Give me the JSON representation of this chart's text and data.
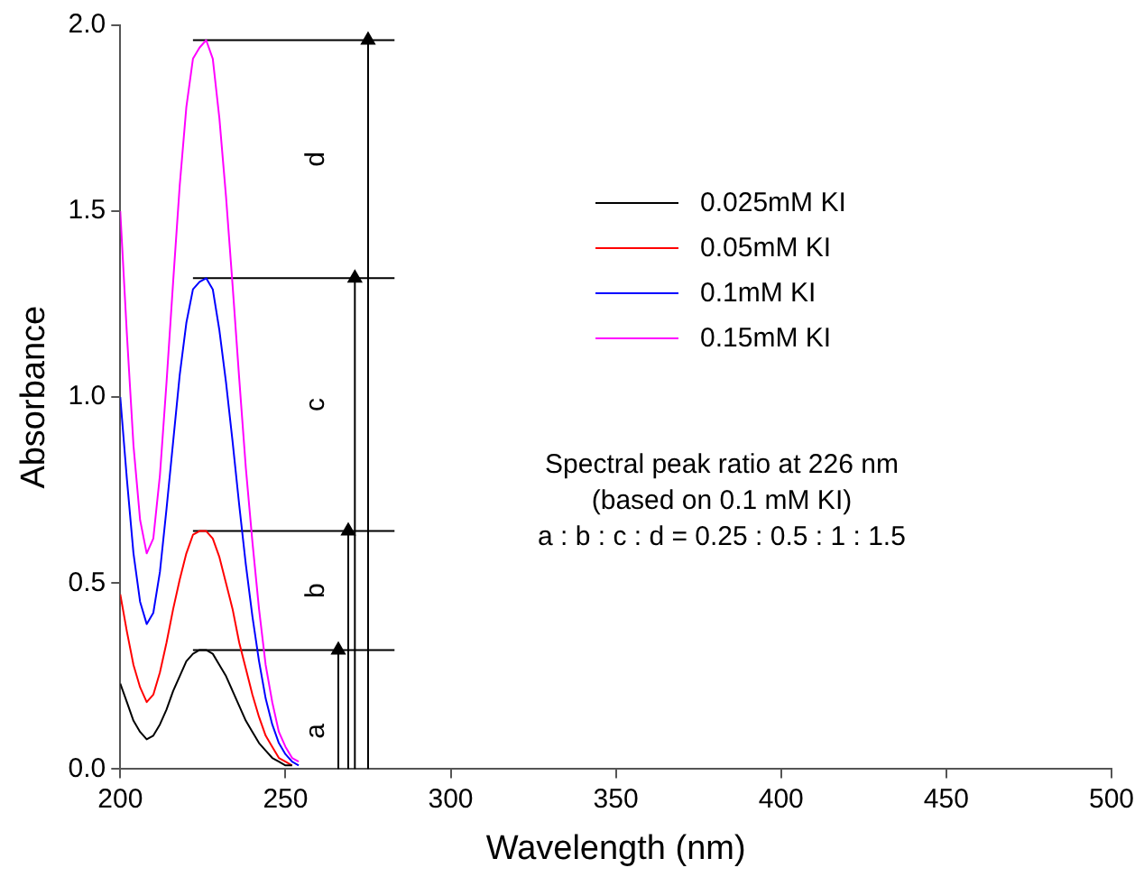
{
  "chart_data": {
    "type": "line",
    "xlabel": "Wavelength (nm)",
    "ylabel": "Absorbance",
    "x": [
      200,
      202,
      204,
      206,
      208,
      210,
      212,
      214,
      216,
      218,
      220,
      222,
      224,
      226,
      228,
      230,
      232,
      234,
      236,
      238,
      240,
      242,
      244,
      246,
      248,
      250,
      252,
      254
    ],
    "series": [
      {
        "name": "0.025mM KI",
        "color": "#000000",
        "values": [
          0.23,
          0.18,
          0.13,
          0.1,
          0.08,
          0.09,
          0.12,
          0.16,
          0.21,
          0.25,
          0.29,
          0.31,
          0.32,
          0.32,
          0.31,
          0.28,
          0.25,
          0.21,
          0.17,
          0.13,
          0.1,
          0.07,
          0.05,
          0.03,
          0.02,
          0.01,
          0.01,
          null
        ]
      },
      {
        "name": "0.05mM KI",
        "color": "#ff0000",
        "values": [
          0.47,
          0.37,
          0.28,
          0.22,
          0.18,
          0.2,
          0.26,
          0.34,
          0.43,
          0.51,
          0.58,
          0.63,
          0.64,
          0.64,
          0.62,
          0.57,
          0.5,
          0.43,
          0.34,
          0.27,
          0.2,
          0.14,
          0.09,
          0.06,
          0.03,
          0.02,
          0.01,
          null
        ]
      },
      {
        "name": "0.1mM KI",
        "color": "#0000ff",
        "values": [
          1.0,
          0.78,
          0.58,
          0.45,
          0.39,
          0.42,
          0.53,
          0.7,
          0.88,
          1.06,
          1.2,
          1.29,
          1.31,
          1.32,
          1.29,
          1.18,
          1.04,
          0.88,
          0.71,
          0.55,
          0.41,
          0.29,
          0.19,
          0.12,
          0.07,
          0.04,
          0.02,
          0.01
        ]
      },
      {
        "name": "0.15mM KI",
        "color": "#ff00ff",
        "values": [
          1.5,
          1.17,
          0.87,
          0.67,
          0.58,
          0.62,
          0.79,
          1.04,
          1.31,
          1.57,
          1.78,
          1.91,
          1.94,
          1.96,
          1.91,
          1.75,
          1.54,
          1.3,
          1.05,
          0.81,
          0.61,
          0.43,
          0.28,
          0.18,
          0.1,
          0.06,
          0.03,
          0.02
        ]
      },
      {
        "type": "line",
        "color": "#000000",
        "x": [
          222,
          283
        ],
        "values": [
          0.32,
          0.32
        ]
      },
      {
        "type": "line",
        "color": "#000000",
        "x": [
          222,
          283
        ],
        "values": [
          0.64,
          0.64
        ]
      },
      {
        "type": "line",
        "color": "#000000",
        "x": [
          222,
          283
        ],
        "values": [
          1.32,
          1.32
        ]
      },
      {
        "type": "line",
        "color": "#000000",
        "x": [
          222,
          283
        ],
        "values": [
          1.96,
          1.96
        ]
      },
      {
        "type": "line",
        "color": "#000000",
        "marker": "triangle",
        "x": [
          266,
          266
        ],
        "values": [
          0,
          0.32
        ]
      },
      {
        "type": "line",
        "color": "#000000",
        "marker": "triangle",
        "x": [
          269,
          269
        ],
        "values": [
          0,
          0.64
        ]
      },
      {
        "type": "line",
        "color": "#000000",
        "marker": "triangle",
        "x": [
          271,
          271
        ],
        "values": [
          0,
          1.32
        ]
      },
      {
        "type": "line",
        "color": "#000000",
        "marker": "triangle",
        "x": [
          275,
          275
        ],
        "values": [
          0,
          1.96
        ]
      }
    ],
    "xlim": [
      200,
      500
    ],
    "xticks": [
      200,
      250,
      300,
      350,
      400,
      450,
      500
    ],
    "ylim": [
      0,
      2.0
    ],
    "yticks": [
      {
        "value": 0,
        "label": "0.0"
      },
      0.5,
      {
        "value": 1,
        "label": "1.0"
      },
      1.5,
      {
        "value": 2,
        "label": "2.0"
      }
    ],
    "grid": false,
    "legend": "top right",
    "marker": "none",
    "line_style": "solid",
    "annotations": [
      "a",
      "b",
      "c",
      "d",
      "Spectral peak ratio at 226 nm",
      "(based on 0.1 mM KI)",
      "a : b : c : d = 0.25 : 0.5 : 1 : 1.5"
    ]
  }
}
